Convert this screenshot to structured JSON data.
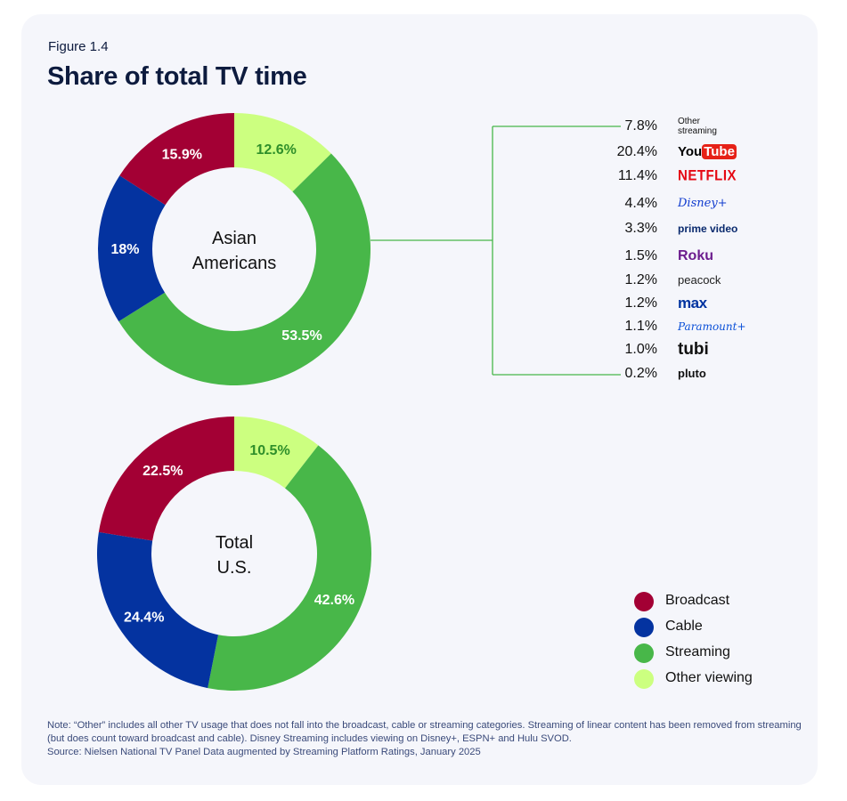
{
  "figure_label": "Figure 1.4",
  "title": "Share of total TV time",
  "colors": {
    "broadcast": "#a30034",
    "cable": "#0433a0",
    "streaming": "#48b749",
    "other_viewing": "#ccff80",
    "connector": "#48b749"
  },
  "chart_data": [
    {
      "type": "pie",
      "center_label": [
        "Asian",
        "Americans"
      ],
      "slices": [
        {
          "label": "Other viewing",
          "value": 12.6,
          "display": "12.6%"
        },
        {
          "label": "Streaming",
          "value": 53.5,
          "display": "53.5%"
        },
        {
          "label": "Cable",
          "value": 18,
          "display": "18%"
        },
        {
          "label": "Broadcast",
          "value": 15.9,
          "display": "15.9%"
        }
      ]
    },
    {
      "type": "pie",
      "center_label": [
        "Total",
        "U.S."
      ],
      "slices": [
        {
          "label": "Other viewing",
          "value": 10.5,
          "display": "10.5%"
        },
        {
          "label": "Streaming",
          "value": 42.6,
          "display": "42.6%"
        },
        {
          "label": "Cable",
          "value": 24.4,
          "display": "24.4%"
        },
        {
          "label": "Broadcast",
          "value": 22.5,
          "display": "22.5%"
        }
      ]
    }
  ],
  "streaming_breakdown": [
    {
      "value": "7.8%",
      "brand": "Other streaming",
      "brand_lines": [
        "Other",
        "streaming"
      ],
      "icon": "other-streaming"
    },
    {
      "value": "20.4%",
      "brand": "YouTube",
      "icon": "youtube-logo"
    },
    {
      "value": "11.4%",
      "brand": "NETFLIX",
      "icon": "netflix-logo"
    },
    {
      "value": "4.4%",
      "brand": "Disney+",
      "icon": "disney-plus-logo"
    },
    {
      "value": "3.3%",
      "brand": "prime video",
      "icon": "prime-video-logo"
    },
    {
      "value": "1.5%",
      "brand": "Roku",
      "icon": "roku-logo"
    },
    {
      "value": "1.2%",
      "brand": "peacock",
      "icon": "peacock-logo"
    },
    {
      "value": "1.2%",
      "brand": "max",
      "icon": "max-logo"
    },
    {
      "value": "1.1%",
      "brand": "Paramount+",
      "icon": "paramount-plus-logo"
    },
    {
      "value": "1.0%",
      "brand": "tubi",
      "icon": "tubi-logo"
    },
    {
      "value": "0.2%",
      "brand": "pluto",
      "icon": "pluto-tv-logo"
    }
  ],
  "legend": [
    {
      "label": "Broadcast",
      "color": "#a30034"
    },
    {
      "label": "Cable",
      "color": "#0433a0"
    },
    {
      "label": "Streaming",
      "color": "#48b749"
    },
    {
      "label": "Other viewing",
      "color": "#ccff80"
    }
  ],
  "notes": [
    "Note: “Other” includes all other TV usage that does not fall into the broadcast, cable or streaming categories. Streaming of linear content has been removed from streaming (but does count toward broadcast and cable). Disney Streaming includes viewing on Disney+, ESPN+ and Hulu SVOD.",
    "Source: Nielsen National TV Panel Data augmented by Streaming Platform Ratings, January 2025"
  ]
}
